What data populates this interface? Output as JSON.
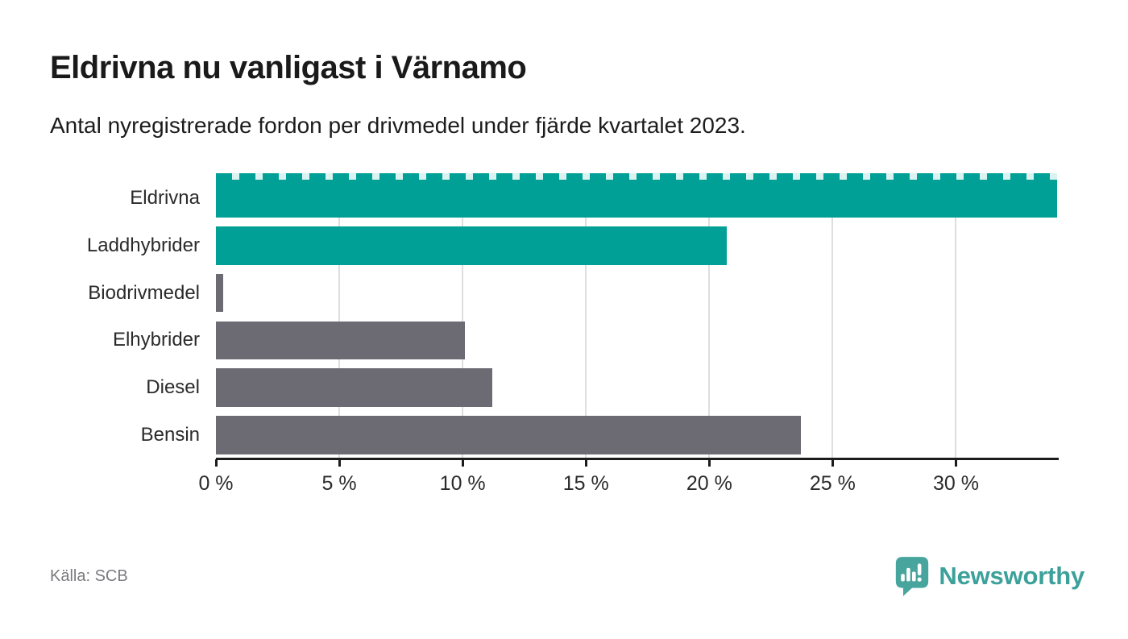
{
  "header": {
    "title": "Eldrivna nu vanligast i Värnamo",
    "subtitle": "Antal nyregistrerade fordon per drivmedel under fjärde kvartalet 2023."
  },
  "chart_data": {
    "type": "bar",
    "orientation": "horizontal",
    "title": "Eldrivna nu vanligast i Värnamo",
    "subtitle": "Antal nyregistrerade fordon per drivmedel under fjärde kvartalet 2023.",
    "categories": [
      "Eldrivna",
      "Laddhybrider",
      "Biodrivmedel",
      "Elhybrider",
      "Diesel",
      "Bensin"
    ],
    "values": [
      34.1,
      20.7,
      0.3,
      10.1,
      11.2,
      23.7
    ],
    "unit": "%",
    "bar_colors": [
      "#00a097",
      "#00a097",
      "#6c6b73",
      "#6c6b73",
      "#6c6b73",
      "#6c6b73"
    ],
    "first_bar_clipped_at_axis_max": true,
    "xlim": [
      0,
      34.1
    ],
    "x_ticks": [
      0,
      5,
      10,
      15,
      20,
      25,
      30
    ],
    "x_tick_labels": [
      "0 %",
      "5 %",
      "10 %",
      "15 %",
      "20 %",
      "25 %",
      "30 %"
    ],
    "grid": true,
    "legend": "none"
  },
  "footer": {
    "source": "Källa: SCB",
    "brand": "Newsworthy"
  },
  "colors": {
    "bar_teal": "#00a097",
    "bar_gray": "#6c6b73",
    "cap_gap": "#daf2f0",
    "grid": "#dedede",
    "axis": "#1c1c1c",
    "text_dark": "#2b2b2b",
    "source_gray": "#7a7a7f",
    "logo_teal": "#47a59d",
    "logo_text_teal": "#3ca19a"
  }
}
